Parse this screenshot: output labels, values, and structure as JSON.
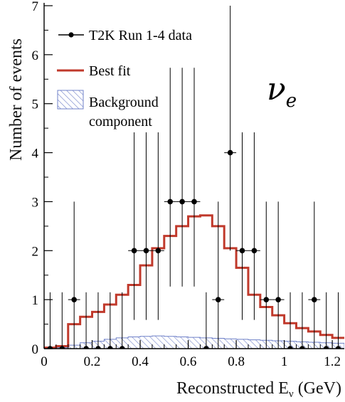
{
  "chart_data": {
    "type": "step-histogram",
    "xlabel": "Reconstructed E",
    "xlabel_sub": "ν",
    "xlabel_unit": " (GeV)",
    "ylabel": "Number of events",
    "xlim": [
      0,
      1.25
    ],
    "ylim": [
      0,
      7
    ],
    "x_ticks": [
      "0",
      "0.2",
      "0.4",
      "0.6",
      "0.8",
      "1",
      "1.2"
    ],
    "y_ticks": [
      "0",
      "1",
      "2",
      "3",
      "4",
      "5",
      "6",
      "7"
    ],
    "annotation": {
      "main": "ν",
      "sub": "e"
    },
    "legend": [
      {
        "label": "T2K Run 1-4 data",
        "kind": "data"
      },
      {
        "label": "Best fit",
        "kind": "line"
      },
      {
        "label": "Background\ncomponent",
        "kind": "hatch"
      }
    ],
    "bin_width": 0.05,
    "bin_edges_start": 0.0,
    "best_fit": [
      0.02,
      0.05,
      0.5,
      0.65,
      0.75,
      0.9,
      1.1,
      1.3,
      1.7,
      2.05,
      2.3,
      2.5,
      2.7,
      2.72,
      2.5,
      2.05,
      1.65,
      1.1,
      0.85,
      0.68,
      0.52,
      0.42,
      0.35,
      0.28,
      0.22
    ],
    "background": [
      0.01,
      0.02,
      0.07,
      0.12,
      0.15,
      0.19,
      0.22,
      0.24,
      0.25,
      0.26,
      0.25,
      0.24,
      0.23,
      0.22,
      0.21,
      0.2,
      0.19,
      0.18,
      0.17,
      0.16,
      0.15,
      0.14,
      0.13,
      0.12,
      0.11
    ],
    "data_x": [
      0.025,
      0.075,
      0.125,
      0.175,
      0.225,
      0.275,
      0.325,
      0.375,
      0.425,
      0.475,
      0.525,
      0.575,
      0.625,
      0.675,
      0.725,
      0.775,
      0.825,
      0.875,
      0.925,
      0.975,
      1.025,
      1.075,
      1.125,
      1.175,
      1.225
    ],
    "data_y": [
      0,
      0,
      1,
      0,
      0,
      0,
      0,
      2,
      2,
      2,
      3,
      3,
      3,
      0,
      1,
      4,
      2,
      2,
      1,
      1,
      0,
      0,
      1,
      0,
      0
    ]
  },
  "colors": {
    "best_fit": "#c0392b",
    "background_hatch": "#6f80c8",
    "data": "#000000",
    "axis": "#000000"
  }
}
